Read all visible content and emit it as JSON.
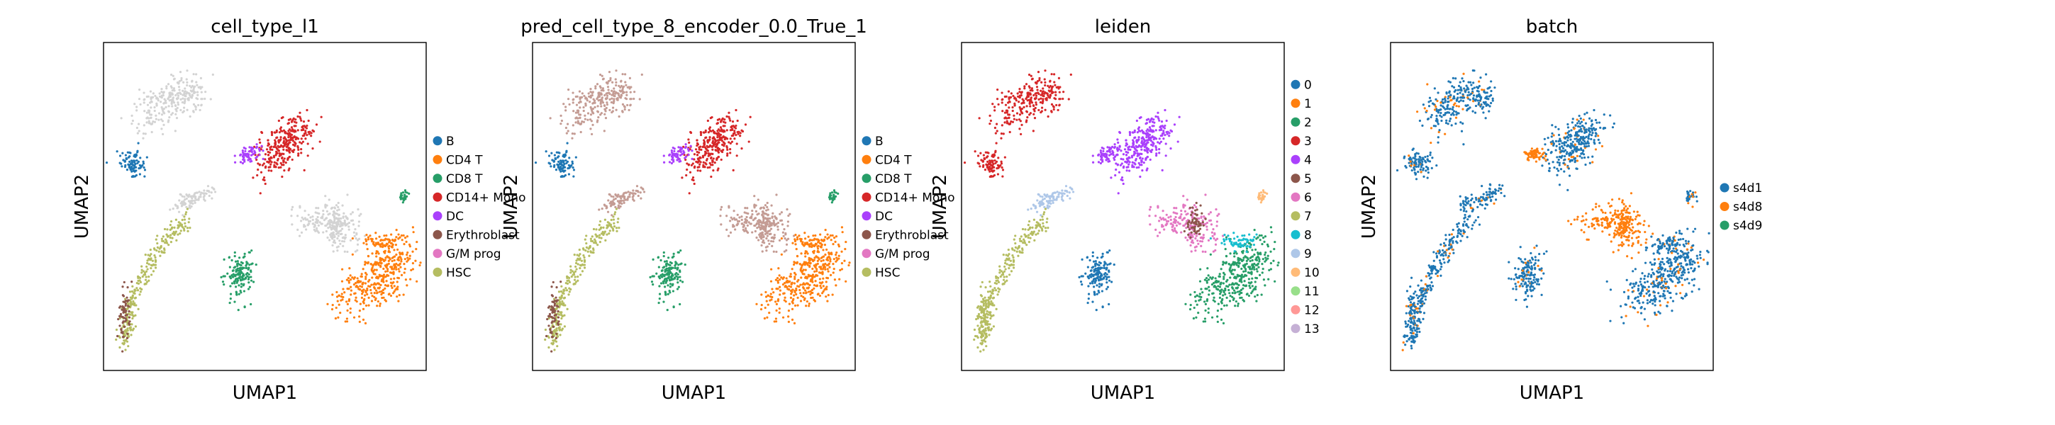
{
  "chart_data": [
    {
      "type": "scatter",
      "title": "cell_type_l1",
      "xlabel": "UMAP1",
      "ylabel": "UMAP2",
      "grid": false,
      "legend_position": "right",
      "legend": [
        {
          "label": "B",
          "color": "#1f77b4"
        },
        {
          "label": "CD4 T",
          "color": "#ff7f0e"
        },
        {
          "label": "CD8 T",
          "color": "#279e68"
        },
        {
          "label": "CD14+ Mono",
          "color": "#d62728"
        },
        {
          "label": "DC",
          "color": "#aa40fc"
        },
        {
          "label": "Erythroblast",
          "color": "#8c564b"
        },
        {
          "label": "G/M prog",
          "color": "#e377c2"
        },
        {
          "label": "HSC",
          "color": "#b5bd61"
        }
      ]
    },
    {
      "type": "scatter",
      "title": "pred_cell_type_8_encoder_0.0_True_1",
      "xlabel": "UMAP1",
      "ylabel": "UMAP2",
      "grid": false,
      "legend_position": "right",
      "legend": [
        {
          "label": "B",
          "color": "#1f77b4"
        },
        {
          "label": "CD4 T",
          "color": "#ff7f0e"
        },
        {
          "label": "CD8 T",
          "color": "#279e68"
        },
        {
          "label": "CD14+ Mono",
          "color": "#d62728"
        },
        {
          "label": "DC",
          "color": "#aa40fc"
        },
        {
          "label": "Erythroblast",
          "color": "#8c564b"
        },
        {
          "label": "G/M prog",
          "color": "#e377c2"
        },
        {
          "label": "HSC",
          "color": "#b5bd61"
        }
      ]
    },
    {
      "type": "scatter",
      "title": "leiden",
      "xlabel": "UMAP1",
      "ylabel": "UMAP2",
      "grid": false,
      "legend_position": "right",
      "legend": [
        {
          "label": "0",
          "color": "#1f77b4"
        },
        {
          "label": "1",
          "color": "#ff7f0e"
        },
        {
          "label": "2",
          "color": "#279e68"
        },
        {
          "label": "3",
          "color": "#d62728"
        },
        {
          "label": "4",
          "color": "#aa40fc"
        },
        {
          "label": "5",
          "color": "#8c564b"
        },
        {
          "label": "6",
          "color": "#e377c2"
        },
        {
          "label": "7",
          "color": "#b5bd61"
        },
        {
          "label": "8",
          "color": "#17becf"
        },
        {
          "label": "9",
          "color": "#aec7e8"
        },
        {
          "label": "10",
          "color": "#ffbb78"
        },
        {
          "label": "11",
          "color": "#98df8a"
        },
        {
          "label": "12",
          "color": "#ff9896"
        },
        {
          "label": "13",
          "color": "#c5b0d5"
        }
      ]
    },
    {
      "type": "scatter",
      "title": "batch",
      "xlabel": "UMAP1",
      "ylabel": "UMAP2",
      "grid": false,
      "legend_position": "right",
      "legend": [
        {
          "label": "s4d1",
          "color": "#1f77b4"
        },
        {
          "label": "s4d8",
          "color": "#ff7f0e"
        },
        {
          "label": "s4d9",
          "color": "#279e68"
        }
      ]
    }
  ]
}
